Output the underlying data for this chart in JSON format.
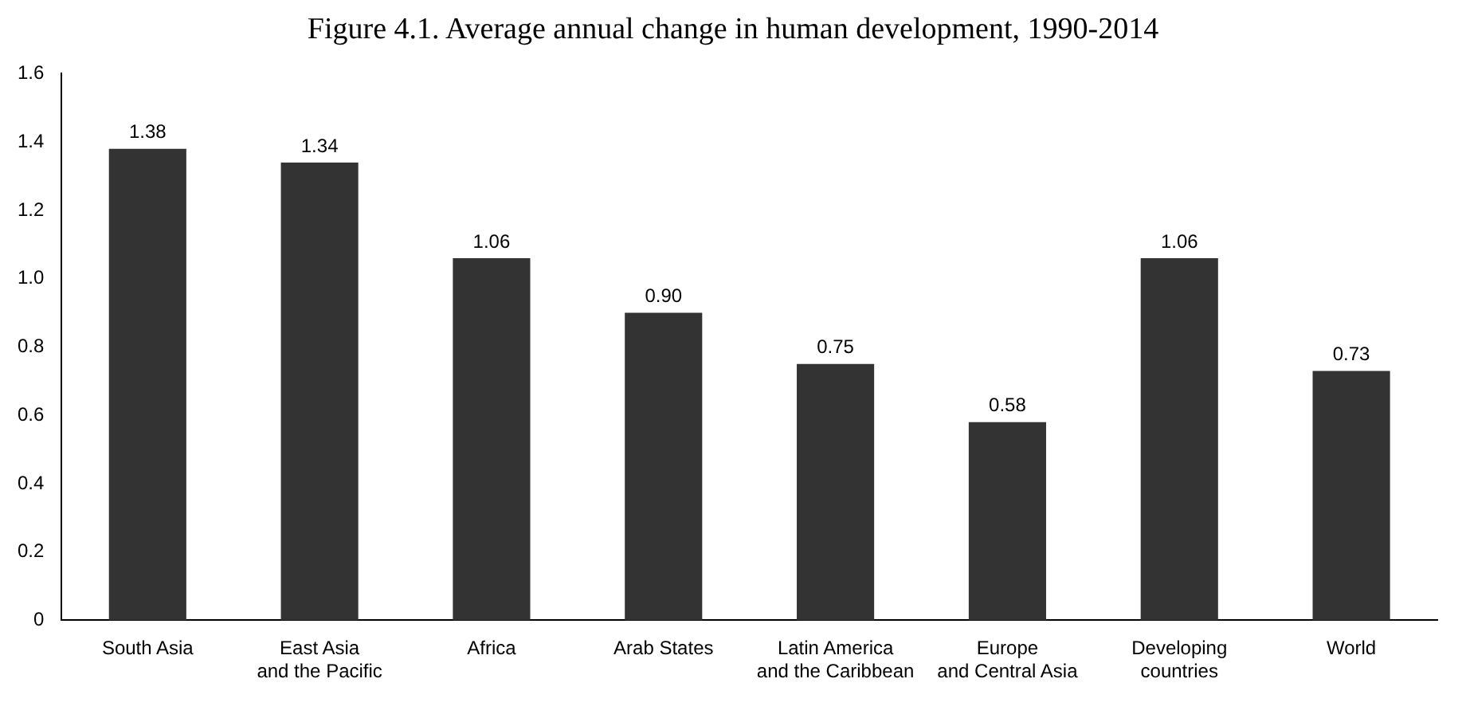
{
  "chart_data": {
    "type": "bar",
    "title": "Figure 4.1. Average annual change in human development, 1990-2014",
    "categories": [
      "South Asia",
      "East Asia\nand the Pacific",
      "Africa",
      "Arab States",
      "Latin America\nand the Caribbean",
      "Europe\nand Central Asia",
      "Developing\ncountries",
      "World"
    ],
    "values": [
      1.38,
      1.34,
      1.06,
      0.9,
      0.75,
      0.58,
      1.06,
      0.73
    ],
    "value_labels": [
      "1.38",
      "1.34",
      "1.06",
      "0.90",
      "0.75",
      "0.58",
      "1.06",
      "0.73"
    ],
    "color": "#333333",
    "ylim": [
      0,
      1.6
    ],
    "yticks": [
      0,
      0.2,
      0.4,
      0.6,
      0.8,
      {
        "value": 1,
        "label": "1.0"
      },
      1.2,
      1.4,
      1.6
    ],
    "grid": false
  }
}
